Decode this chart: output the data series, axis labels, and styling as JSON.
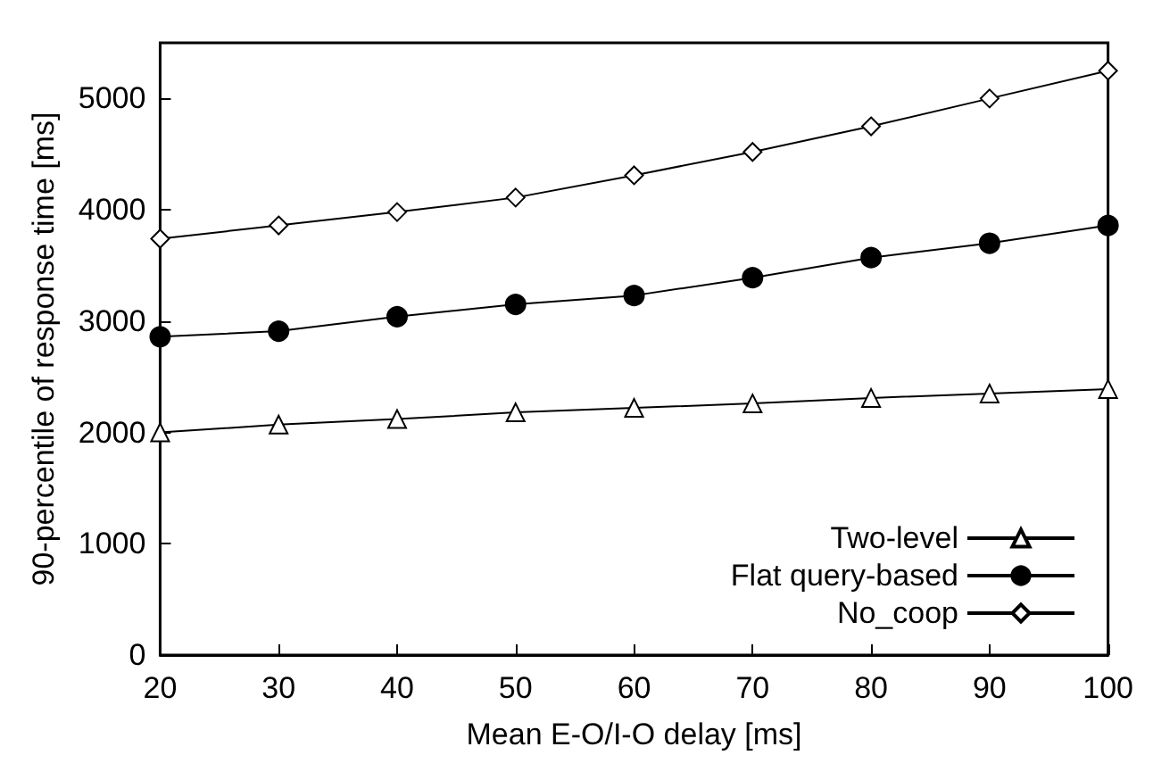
{
  "chart_data": {
    "type": "line",
    "xlabel": "Mean E-O/I-O delay [ms]",
    "ylabel": "90-percentile of response time [ms]",
    "x": [
      20,
      30,
      40,
      50,
      60,
      70,
      80,
      90,
      100
    ],
    "series": [
      {
        "name": "Two-level",
        "color": "#000000",
        "marker": "triangle",
        "values": [
          2000,
          2070,
          2120,
          2180,
          2220,
          2260,
          2310,
          2350,
          2390
        ]
      },
      {
        "name": "Flat query-based",
        "color": "#000000",
        "marker": "circle",
        "values": [
          2860,
          2910,
          3040,
          3150,
          3230,
          3390,
          3570,
          3700,
          3860
        ]
      },
      {
        "name": "No_coop",
        "color": "#000000",
        "marker": "diamond",
        "values": [
          3740,
          3860,
          3980,
          4110,
          4310,
          4520,
          4750,
          5000,
          5250
        ]
      }
    ],
    "xlim": [
      20,
      100
    ],
    "xticks": [
      20,
      30,
      40,
      50,
      60,
      70,
      80,
      90,
      100
    ],
    "ylim": [
      0,
      5500
    ],
    "yticks": [
      0,
      1000,
      2000,
      3000,
      4000,
      5000
    ],
    "grid": false,
    "legend": "bottom right",
    "line_style": "solid"
  }
}
